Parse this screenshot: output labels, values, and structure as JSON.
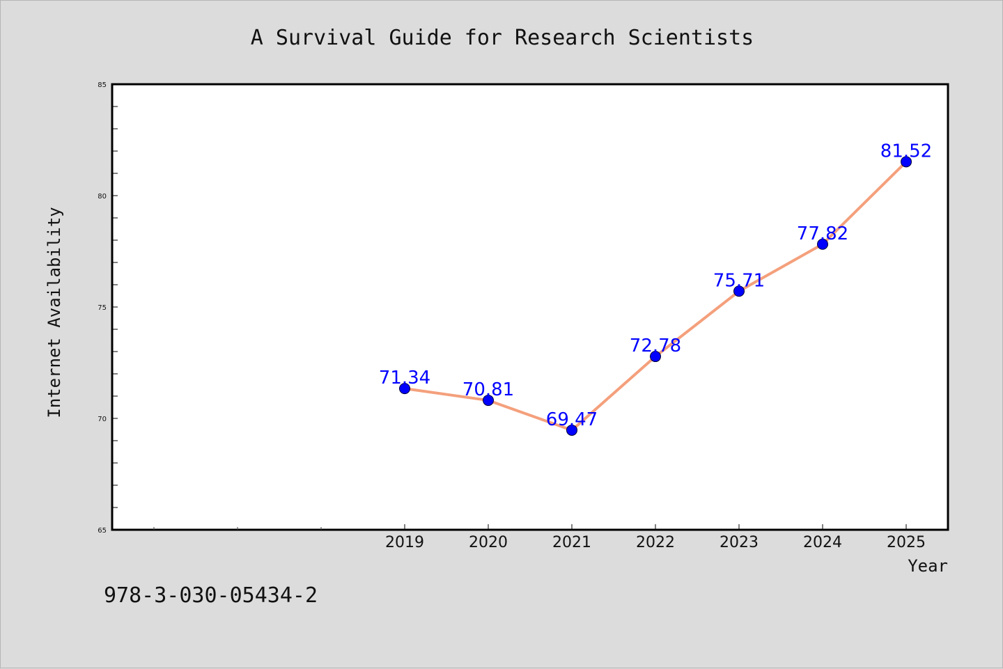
{
  "footnote": "978-3-030-05434-2",
  "colors": {
    "background": "#dcdcdc",
    "plot_area": "#ffffff",
    "line": "#f4a07c",
    "marker": "#0000ff",
    "data_label": "#0000ff"
  },
  "chart_data": {
    "type": "line",
    "title": "A Survival Guide for Research Scientists",
    "xlabel": "Year",
    "ylabel": "Internet Availability",
    "categories": [
      "2019",
      "2020",
      "2021",
      "2022",
      "2023",
      "2024",
      "2025"
    ],
    "series": [
      {
        "values": [
          71.34,
          70.81,
          69.47,
          72.78,
          75.71,
          77.82,
          81.52
        ],
        "line_color": "#f4a07c",
        "marker_color": "#0000ff"
      }
    ],
    "data_labels": [
      "71.34",
      "70.81",
      "69.47",
      "72.78",
      "75.71",
      "77.82",
      "81.52"
    ],
    "xlim": [
      2015.5,
      2025.5
    ],
    "ylim": [
      65,
      85
    ],
    "yticks": [
      "65",
      "70",
      "75",
      "80",
      "85"
    ],
    "grid": false,
    "legend": false
  }
}
